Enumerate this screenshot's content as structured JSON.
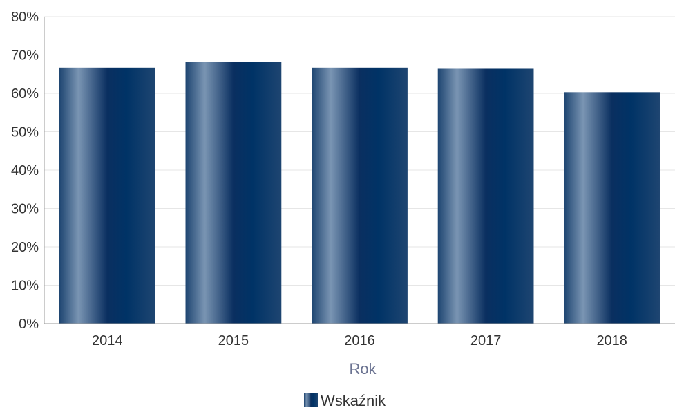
{
  "chart_data": {
    "type": "bar",
    "categories": [
      "2014",
      "2015",
      "2016",
      "2017",
      "2018"
    ],
    "series": [
      {
        "name": "Wskaźnik",
        "values": [
          66.7,
          68.2,
          66.7,
          66.4,
          60.3
        ]
      }
    ],
    "title": "",
    "xlabel": "Rok",
    "ylabel": "",
    "ylim": [
      0,
      80
    ],
    "yticks": [
      "0%",
      "10%",
      "20%",
      "30%",
      "40%",
      "50%",
      "60%",
      "70%",
      "80%"
    ],
    "grid": true,
    "legend": "bottom",
    "colors": {
      "bar_dark": "#003366",
      "bar_light": "#7a95b3",
      "axis": "#999999",
      "grid": "#e6e6e6"
    }
  }
}
